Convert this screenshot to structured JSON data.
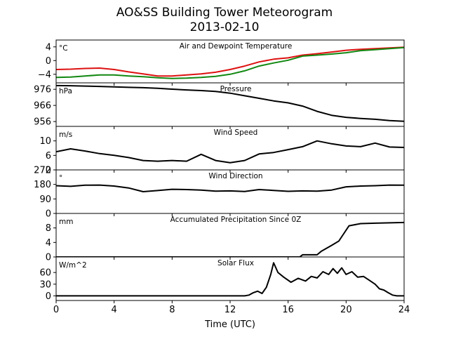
{
  "figure": {
    "title_line1": "AO&SS Building Tower Meteorogram",
    "title_line2": "2013-02-10",
    "xlabel": "Time (UTC)",
    "xticks": [
      0,
      4,
      8,
      12,
      16,
      20,
      24
    ],
    "xlim": [
      0,
      24
    ]
  },
  "chart_data": [
    {
      "type": "line",
      "title": "Air and Dewpoint Temperature",
      "unit": "°C",
      "ylim": [
        -6.5,
        6
      ],
      "yticks": [
        4,
        0,
        -4
      ],
      "series": [
        {
          "color": "#dd1111",
          "x": [
            0,
            1,
            2,
            3,
            4,
            5,
            6,
            7,
            8,
            9,
            10,
            11,
            12,
            13,
            14,
            15,
            16,
            17,
            18,
            19,
            20,
            21,
            22,
            23,
            24
          ],
          "y": [
            -2.6,
            -2.5,
            -2.3,
            -2.2,
            -2.6,
            -3.3,
            -3.9,
            -4.5,
            -4.5,
            -4.2,
            -3.9,
            -3.4,
            -2.6,
            -1.6,
            -0.4,
            0.4,
            0.8,
            1.6,
            2.0,
            2.5,
            3.0,
            3.3,
            3.5,
            3.7,
            3.9
          ]
        },
        {
          "color": "#118811",
          "x": [
            0,
            1,
            2,
            3,
            4,
            5,
            6,
            7,
            8,
            9,
            10,
            11,
            12,
            13,
            14,
            15,
            16,
            17,
            18,
            19,
            20,
            21,
            22,
            23,
            24
          ],
          "y": [
            -4.9,
            -4.8,
            -4.5,
            -4.2,
            -4.2,
            -4.5,
            -4.7,
            -5.0,
            -5.2,
            -5.1,
            -4.9,
            -4.6,
            -4.0,
            -3.0,
            -1.6,
            -0.7,
            0.1,
            1.3,
            1.6,
            1.9,
            2.3,
            2.9,
            3.2,
            3.5,
            3.8
          ]
        }
      ]
    },
    {
      "type": "line",
      "title": "Pressure",
      "unit": "hPa",
      "ylim": [
        953,
        980
      ],
      "yticks": [
        976,
        966,
        956
      ],
      "series": [
        {
          "color": "#000000",
          "x": [
            0,
            1,
            2,
            3,
            4,
            5,
            6,
            7,
            8,
            9,
            10,
            11,
            12,
            13,
            14,
            15,
            16,
            17,
            18,
            19,
            20,
            21,
            22,
            23,
            24
          ],
          "y": [
            978.3,
            978.2,
            978.0,
            977.8,
            977.5,
            977.2,
            977.0,
            976.6,
            976.1,
            975.6,
            975.2,
            974.7,
            973.6,
            972.0,
            970.4,
            968.8,
            967.6,
            965.6,
            962.3,
            959.9,
            958.6,
            957.9,
            957.4,
            956.6,
            956.2
          ]
        }
      ]
    },
    {
      "type": "line",
      "title": "Wind Speed",
      "unit": "m/s",
      "ylim": [
        2,
        14
      ],
      "yticks": [
        10,
        6,
        2
      ],
      "series": [
        {
          "color": "#000000",
          "x": [
            0,
            1,
            2,
            3,
            4,
            5,
            6,
            7,
            8,
            9,
            10,
            11,
            12,
            13,
            14,
            15,
            16,
            17,
            18,
            19,
            20,
            21,
            22,
            23,
            24
          ],
          "y": [
            7.0,
            7.8,
            7.2,
            6.5,
            6.0,
            5.4,
            4.6,
            4.4,
            4.6,
            4.4,
            6.3,
            4.6,
            4.0,
            4.6,
            6.4,
            6.8,
            7.6,
            8.4,
            10.0,
            9.2,
            8.6,
            8.4,
            9.4,
            8.3,
            8.2
          ]
        }
      ]
    },
    {
      "type": "line",
      "title": "Wind Direction",
      "unit": "°",
      "ylim": [
        0,
        270
      ],
      "yticks": [
        270,
        180,
        90,
        0
      ],
      "series": [
        {
          "color": "#000000",
          "x": [
            0,
            1,
            2,
            3,
            4,
            5,
            6,
            7,
            8,
            9,
            10,
            11,
            12,
            13,
            14,
            15,
            16,
            17,
            18,
            19,
            20,
            21,
            22,
            23,
            24
          ],
          "y": [
            172,
            168,
            175,
            176,
            170,
            158,
            135,
            142,
            150,
            148,
            145,
            138,
            140,
            136,
            148,
            143,
            137,
            140,
            138,
            145,
            165,
            170,
            172,
            176,
            175
          ]
        }
      ]
    },
    {
      "type": "line",
      "title": "Accumulated Precipitation Since 0Z",
      "unit": "mm",
      "ylim": [
        0,
        12
      ],
      "yticks": [
        8,
        4,
        0
      ],
      "series": [
        {
          "color": "#000000",
          "x": [
            0,
            16,
            16.8,
            17.0,
            18.0,
            18.3,
            19.0,
            19.5,
            19.8,
            20.2,
            21.0,
            22.0,
            23.0,
            24.0
          ],
          "y": [
            0,
            0,
            0,
            0.6,
            0.6,
            1.6,
            3.2,
            4.4,
            6.2,
            8.6,
            9.2,
            9.3,
            9.4,
            9.5
          ]
        }
      ]
    },
    {
      "type": "line",
      "title": "Solar Flux",
      "unit": "W/m^2",
      "ylim": [
        -12,
        100
      ],
      "yticks": [
        60,
        30,
        0
      ],
      "series": [
        {
          "color": "#000000",
          "x": [
            0,
            13.0,
            13.3,
            13.6,
            13.9,
            14.2,
            14.5,
            14.8,
            15.0,
            15.3,
            15.7,
            16.2,
            16.7,
            17.2,
            17.6,
            18.0,
            18.4,
            18.8,
            19.1,
            19.4,
            19.7,
            20.0,
            20.4,
            20.8,
            21.2,
            21.6,
            22.0,
            22.3,
            22.6,
            22.9,
            23.2,
            23.5,
            24.0
          ],
          "y": [
            0,
            0,
            2,
            8,
            12,
            6,
            22,
            55,
            85,
            60,
            48,
            35,
            45,
            38,
            50,
            46,
            62,
            55,
            70,
            58,
            72,
            55,
            62,
            48,
            50,
            40,
            30,
            18,
            15,
            8,
            2,
            0,
            0
          ]
        }
      ]
    }
  ]
}
